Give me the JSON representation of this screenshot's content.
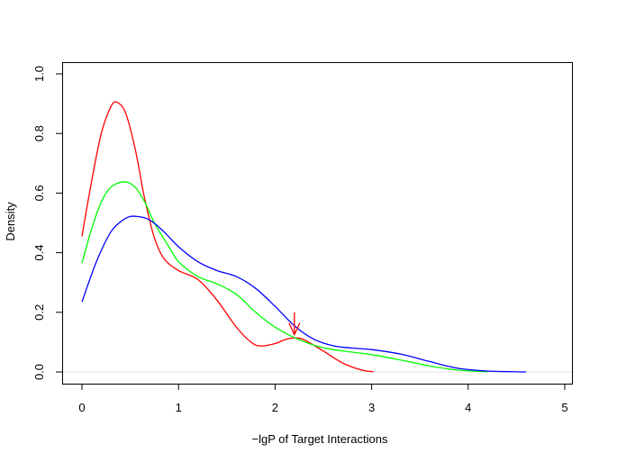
{
  "chart_data": {
    "type": "line",
    "title": "",
    "xlabel": "−lgP of Target Interactions",
    "ylabel": "Density",
    "xlim": [
      0,
      5
    ],
    "ylim": [
      0,
      1.0
    ],
    "x_ticks": [
      0,
      1,
      2,
      3,
      4,
      5
    ],
    "x_tick_labels": [
      "0",
      "1",
      "2",
      "3",
      "4",
      "5"
    ],
    "y_ticks": [
      0.0,
      0.2,
      0.4,
      0.6,
      0.8,
      1.0
    ],
    "y_tick_labels": [
      "0.0",
      "0.2",
      "0.4",
      "0.6",
      "0.8",
      "1.0"
    ],
    "grid": false,
    "baseline": {
      "y": 0,
      "color": "#e0e0e0"
    },
    "series": [
      {
        "color": "#ff0000",
        "x": [
          0.0,
          0.1,
          0.2,
          0.3,
          0.36,
          0.45,
          0.55,
          0.65,
          0.75,
          0.85,
          1.0,
          1.2,
          1.4,
          1.6,
          1.75,
          1.85,
          2.0,
          2.1,
          2.2,
          2.3,
          2.5,
          2.7,
          2.9,
          3.02
        ],
        "values": [
          0.455,
          0.64,
          0.8,
          0.89,
          0.905,
          0.87,
          0.75,
          0.58,
          0.45,
          0.38,
          0.34,
          0.31,
          0.24,
          0.15,
          0.1,
          0.087,
          0.095,
          0.108,
          0.114,
          0.108,
          0.07,
          0.03,
          0.006,
          0.001
        ]
      },
      {
        "color": "#00ff00",
        "x": [
          0.0,
          0.1,
          0.2,
          0.3,
          0.44,
          0.55,
          0.65,
          0.75,
          0.9,
          1.0,
          1.2,
          1.4,
          1.6,
          1.8,
          2.0,
          2.2,
          2.4,
          2.6,
          3.0,
          3.3,
          3.6,
          3.9,
          4.2
        ],
        "values": [
          0.365,
          0.48,
          0.57,
          0.62,
          0.638,
          0.62,
          0.57,
          0.5,
          0.42,
          0.37,
          0.32,
          0.295,
          0.26,
          0.2,
          0.15,
          0.115,
          0.09,
          0.075,
          0.058,
          0.04,
          0.02,
          0.006,
          0.001
        ]
      },
      {
        "color": "#0000ff",
        "x": [
          0.0,
          0.15,
          0.3,
          0.45,
          0.56,
          0.7,
          0.85,
          1.0,
          1.2,
          1.4,
          1.6,
          1.8,
          2.0,
          2.2,
          2.4,
          2.6,
          2.8,
          3.0,
          3.3,
          3.6,
          3.9,
          4.2,
          4.6
        ],
        "values": [
          0.235,
          0.37,
          0.47,
          0.515,
          0.522,
          0.51,
          0.47,
          0.42,
          0.37,
          0.34,
          0.32,
          0.28,
          0.22,
          0.155,
          0.11,
          0.088,
          0.08,
          0.075,
          0.06,
          0.035,
          0.012,
          0.003,
          0.0
        ]
      }
    ],
    "annotations": [
      {
        "type": "arrow",
        "color": "#ff0000",
        "x": 2.2,
        "y_from": 0.2,
        "y_to": 0.125
      }
    ]
  }
}
